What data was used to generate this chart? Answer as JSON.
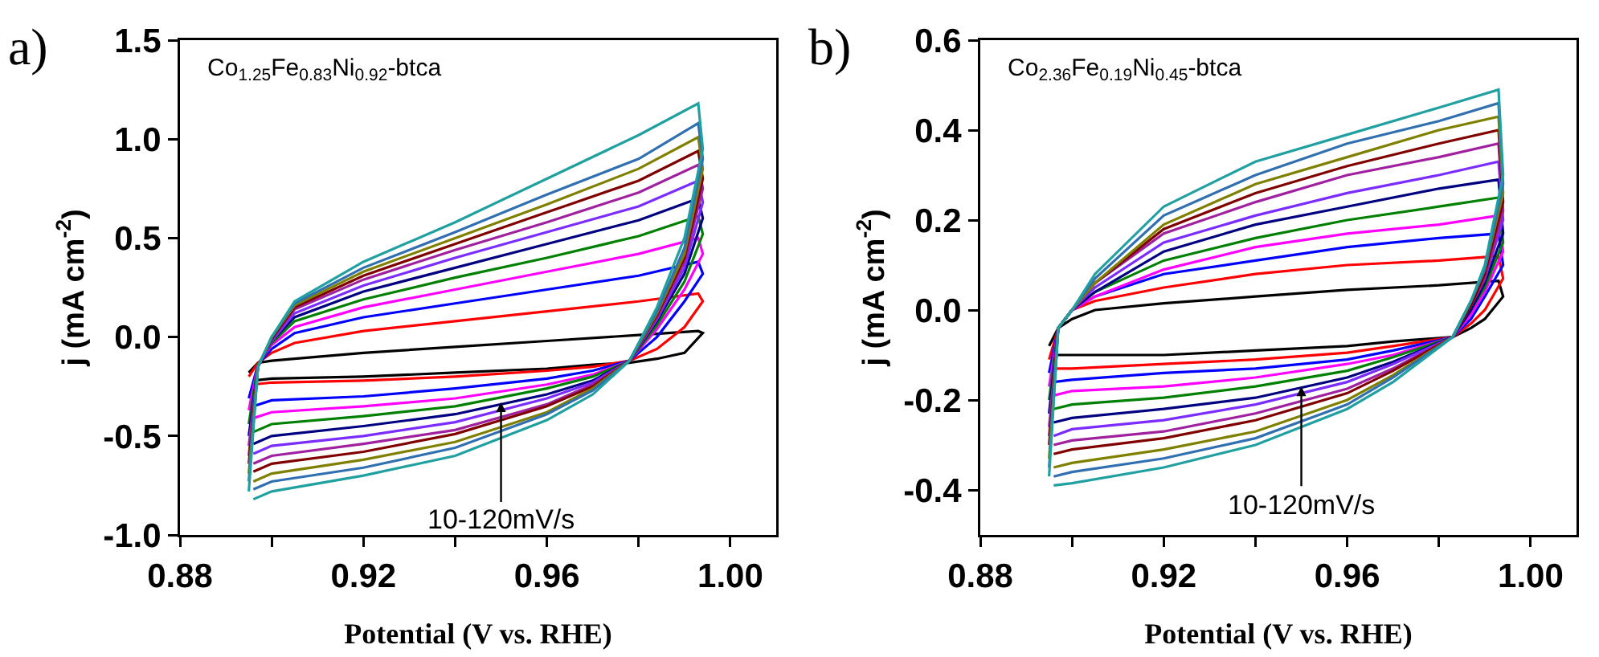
{
  "chart_data": [
    {
      "type": "line",
      "title": "a)",
      "subtitle": "Co$_{1.25}$Fe$_{0.83}$Ni$_{0.92}$-btca",
      "xlabel": "Potential (V vs. RHE)",
      "ylabel": "j (mA cm$^{-2}$)",
      "x": [
        0.895,
        0.897,
        0.9,
        0.905,
        0.92,
        0.94,
        0.96,
        0.98,
        0.993,
        0.994,
        0.99,
        0.984,
        0.978,
        0.97,
        0.96,
        0.94,
        0.92,
        0.9,
        0.896
      ],
      "xlim": [
        0.88,
        1.01
      ],
      "xticks": [
        0.88,
        {
          "value": 0.9,
          "label": null
        },
        0.92,
        {
          "value": 0.94,
          "label": null
        },
        0.96,
        {
          "value": 0.98,
          "label": null
        },
        {
          "value": 1.0,
          "label": "1.00"
        }
      ],
      "ylim": [
        -1.0,
        1.5
      ],
      "yticks": [
        {
          "value": -1.0,
          "label": "-1.0"
        },
        -0.5,
        {
          "value": 0,
          "label": "0.0"
        },
        0.5,
        {
          "value": 1.0,
          "label": "1.0"
        },
        1.5
      ],
      "annotations": [
        {
          "text": "10-120mV/s",
          "x": 0.95,
          "y": -0.33
        }
      ],
      "series": [
        {
          "color": "#000000",
          "values": [
            -0.18,
            -0.13,
            -0.12,
            -0.11,
            -0.08,
            -0.05,
            -0.02,
            0.01,
            0.03,
            0.02,
            -0.08,
            -0.11,
            -0.13,
            -0.14,
            -0.16,
            -0.18,
            -0.2,
            -0.21,
            -0.22
          ]
        },
        {
          "color": "#ff0000",
          "values": [
            -0.2,
            -0.13,
            -0.08,
            -0.03,
            0.03,
            0.08,
            0.13,
            0.18,
            0.22,
            0.18,
            0.05,
            -0.06,
            -0.12,
            -0.15,
            -0.17,
            -0.2,
            -0.22,
            -0.23,
            -0.24
          ]
        },
        {
          "color": "#0000ff",
          "values": [
            -0.31,
            -0.14,
            -0.06,
            0.02,
            0.1,
            0.17,
            0.24,
            0.31,
            0.38,
            0.32,
            0.18,
            0.0,
            -0.12,
            -0.17,
            -0.21,
            -0.26,
            -0.3,
            -0.32,
            -0.35
          ]
        },
        {
          "color": "#ff00ff",
          "values": [
            -0.37,
            -0.14,
            -0.04,
            0.05,
            0.15,
            0.24,
            0.33,
            0.42,
            0.5,
            0.42,
            0.24,
            0.04,
            -0.12,
            -0.19,
            -0.24,
            -0.31,
            -0.35,
            -0.38,
            -0.41
          ]
        },
        {
          "color": "#008000",
          "values": [
            -0.44,
            -0.14,
            -0.03,
            0.08,
            0.19,
            0.3,
            0.4,
            0.51,
            0.61,
            0.52,
            0.28,
            0.06,
            -0.12,
            -0.2,
            -0.26,
            -0.35,
            -0.4,
            -0.44,
            -0.48
          ]
        },
        {
          "color": "#000080",
          "values": [
            -0.5,
            -0.15,
            -0.02,
            0.1,
            0.23,
            0.35,
            0.47,
            0.59,
            0.7,
            0.6,
            0.32,
            0.08,
            -0.12,
            -0.22,
            -0.29,
            -0.39,
            -0.45,
            -0.5,
            -0.54
          ]
        },
        {
          "color": "#7b2cff",
          "values": [
            -0.55,
            -0.15,
            -0.02,
            0.12,
            0.26,
            0.4,
            0.53,
            0.66,
            0.79,
            0.68,
            0.35,
            0.09,
            -0.12,
            -0.23,
            -0.31,
            -0.43,
            -0.5,
            -0.55,
            -0.59
          ]
        },
        {
          "color": "#a020a0",
          "values": [
            -0.6,
            -0.15,
            -0.01,
            0.14,
            0.29,
            0.44,
            0.58,
            0.73,
            0.87,
            0.75,
            0.38,
            0.1,
            -0.12,
            -0.24,
            -0.34,
            -0.47,
            -0.54,
            -0.6,
            -0.64
          ]
        },
        {
          "color": "#800000",
          "values": [
            -0.64,
            -0.15,
            -0.01,
            0.15,
            0.31,
            0.47,
            0.63,
            0.79,
            0.94,
            0.8,
            0.4,
            0.11,
            -0.12,
            -0.25,
            -0.35,
            -0.49,
            -0.58,
            -0.64,
            -0.68
          ]
        },
        {
          "color": "#808000",
          "values": [
            -0.69,
            -0.15,
            0.0,
            0.16,
            0.33,
            0.5,
            0.67,
            0.85,
            1.01,
            0.85,
            0.42,
            0.12,
            -0.12,
            -0.26,
            -0.38,
            -0.53,
            -0.62,
            -0.69,
            -0.73
          ]
        },
        {
          "color": "#3070b0",
          "values": [
            -0.73,
            -0.15,
            0.0,
            0.17,
            0.35,
            0.53,
            0.72,
            0.9,
            1.08,
            0.9,
            0.45,
            0.13,
            -0.12,
            -0.27,
            -0.39,
            -0.56,
            -0.66,
            -0.73,
            -0.77
          ]
        },
        {
          "color": "#20a0a0",
          "values": [
            -0.78,
            -0.15,
            0.0,
            0.18,
            0.38,
            0.58,
            0.8,
            1.02,
            1.18,
            0.95,
            0.5,
            0.15,
            -0.12,
            -0.29,
            -0.42,
            -0.6,
            -0.7,
            -0.78,
            -0.82
          ]
        }
      ]
    },
    {
      "type": "line",
      "title": "b)",
      "subtitle": "Co$_{2.36}$Fe$_{0.19}$Ni$_{0.45}$-btca",
      "xlabel": "Potential (V vs. RHE)",
      "ylabel": "j (mA cm$^{-2}$)",
      "x": [
        0.895,
        0.897,
        0.9,
        0.905,
        0.92,
        0.94,
        0.96,
        0.98,
        0.993,
        0.994,
        0.99,
        0.987,
        0.983,
        0.97,
        0.96,
        0.94,
        0.92,
        0.9,
        0.896
      ],
      "xlim": [
        0.88,
        1.01
      ],
      "xticks": [
        0.88,
        {
          "value": 0.9,
          "label": null
        },
        0.92,
        {
          "value": 0.94,
          "label": null
        },
        0.96,
        {
          "value": 0.98,
          "label": null
        },
        {
          "value": 1.0,
          "label": "1.00"
        }
      ],
      "ylim": [
        -0.5,
        0.6
      ],
      "yticks": [
        -0.4,
        -0.2,
        {
          "value": 0,
          "label": "0.0"
        },
        0.2,
        0.4,
        0.6
      ],
      "annotations": [
        {
          "text": "10-120mV/s",
          "x": 0.95,
          "y": -0.17
        }
      ],
      "series": [
        {
          "color": "#000000",
          "values": [
            -0.08,
            -0.04,
            -0.02,
            0.0,
            0.015,
            0.03,
            0.045,
            0.055,
            0.065,
            0.03,
            -0.02,
            -0.04,
            -0.06,
            -0.07,
            -0.08,
            -0.09,
            -0.1,
            -0.1,
            -0.1
          ]
        },
        {
          "color": "#ff0000",
          "values": [
            -0.11,
            -0.04,
            0.0,
            0.02,
            0.05,
            0.08,
            0.1,
            0.11,
            0.12,
            0.07,
            0.0,
            -0.03,
            -0.06,
            -0.08,
            -0.095,
            -0.11,
            -0.12,
            -0.13,
            -0.13
          ]
        },
        {
          "color": "#0000ff",
          "values": [
            -0.14,
            -0.04,
            0.0,
            0.03,
            0.08,
            0.11,
            0.14,
            0.16,
            0.17,
            0.1,
            0.03,
            -0.02,
            -0.06,
            -0.09,
            -0.11,
            -0.13,
            -0.14,
            -0.155,
            -0.16
          ]
        },
        {
          "color": "#ff00ff",
          "values": [
            -0.17,
            -0.04,
            0.0,
            0.03,
            0.09,
            0.14,
            0.17,
            0.19,
            0.21,
            0.13,
            0.04,
            -0.01,
            -0.06,
            -0.1,
            -0.12,
            -0.15,
            -0.17,
            -0.18,
            -0.19
          ]
        },
        {
          "color": "#008000",
          "values": [
            -0.2,
            -0.04,
            0.0,
            0.04,
            0.11,
            0.16,
            0.2,
            0.23,
            0.25,
            0.15,
            0.05,
            0.0,
            -0.06,
            -0.105,
            -0.135,
            -0.17,
            -0.195,
            -0.21,
            -0.22
          ]
        },
        {
          "color": "#000080",
          "values": [
            -0.23,
            -0.04,
            0.0,
            0.04,
            0.13,
            0.19,
            0.23,
            0.27,
            0.29,
            0.17,
            0.06,
            0.0,
            -0.06,
            -0.115,
            -0.15,
            -0.195,
            -0.22,
            -0.24,
            -0.25
          ]
        },
        {
          "color": "#7b2cff",
          "values": [
            -0.26,
            -0.04,
            0.0,
            0.05,
            0.15,
            0.21,
            0.26,
            0.3,
            0.33,
            0.2,
            0.07,
            0.01,
            -0.06,
            -0.12,
            -0.16,
            -0.21,
            -0.245,
            -0.265,
            -0.28
          ]
        },
        {
          "color": "#a020a0",
          "values": [
            -0.28,
            -0.04,
            0.0,
            0.06,
            0.17,
            0.24,
            0.3,
            0.34,
            0.37,
            0.22,
            0.07,
            0.01,
            -0.06,
            -0.13,
            -0.175,
            -0.23,
            -0.27,
            -0.29,
            -0.3
          ]
        },
        {
          "color": "#800000",
          "values": [
            -0.3,
            -0.04,
            0.0,
            0.06,
            0.18,
            0.26,
            0.32,
            0.37,
            0.4,
            0.24,
            0.08,
            0.01,
            -0.06,
            -0.135,
            -0.185,
            -0.245,
            -0.285,
            -0.31,
            -0.32
          ]
        },
        {
          "color": "#808000",
          "values": [
            -0.33,
            -0.04,
            0.0,
            0.06,
            0.19,
            0.28,
            0.34,
            0.4,
            0.43,
            0.26,
            0.09,
            0.02,
            -0.06,
            -0.145,
            -0.2,
            -0.27,
            -0.31,
            -0.34,
            -0.35
          ]
        },
        {
          "color": "#3070b0",
          "values": [
            -0.35,
            -0.04,
            0.0,
            0.07,
            0.21,
            0.3,
            0.37,
            0.42,
            0.46,
            0.28,
            0.09,
            0.02,
            -0.06,
            -0.15,
            -0.21,
            -0.285,
            -0.33,
            -0.36,
            -0.37
          ]
        },
        {
          "color": "#20a0a0",
          "values": [
            -0.37,
            -0.04,
            0.0,
            0.08,
            0.23,
            0.33,
            0.39,
            0.45,
            0.49,
            0.3,
            0.1,
            0.02,
            -0.06,
            -0.16,
            -0.22,
            -0.3,
            -0.35,
            -0.385,
            -0.39
          ]
        }
      ]
    }
  ]
}
